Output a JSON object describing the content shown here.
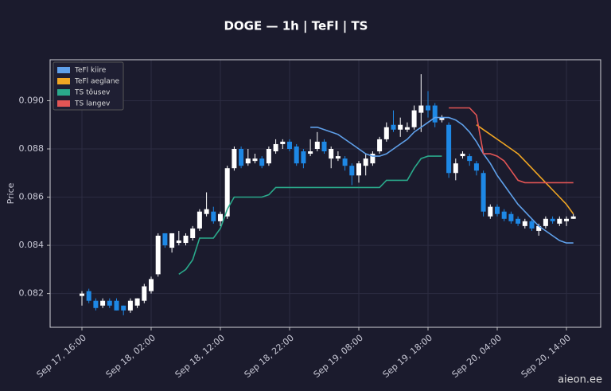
{
  "chart_data": {
    "type": "candlestick",
    "title": "DOGE — 1h  |  TeFl  |  TS",
    "ylabel": "Price",
    "watermark": "aieon.ee",
    "legend": "upper left",
    "grid": true,
    "up_color": "#ffffff",
    "down_color": "#1e88e5",
    "categories": [
      "Sep 17, 16:00",
      null,
      null,
      null,
      null,
      null,
      null,
      null,
      null,
      null,
      "Sep 18, 02:00",
      null,
      null,
      null,
      null,
      null,
      null,
      null,
      null,
      null,
      "Sep 18, 12:00",
      null,
      null,
      null,
      null,
      null,
      null,
      null,
      null,
      null,
      "Sep 18, 22:00",
      null,
      null,
      null,
      null,
      null,
      null,
      null,
      null,
      null,
      "Sep 19, 08:00",
      null,
      null,
      null,
      null,
      null,
      null,
      null,
      null,
      null,
      "Sep 19, 18:00",
      null,
      null,
      null,
      null,
      null,
      null,
      null,
      null,
      null,
      "Sep 20, 04:00",
      null,
      null,
      null,
      null,
      null,
      null,
      null,
      null,
      null,
      "Sep 20, 14:00",
      null
    ],
    "open": [
      0.0819,
      0.0821,
      0.0817,
      0.0815,
      0.0817,
      0.0817,
      0.0815,
      0.0813,
      0.0815,
      0.0817,
      0.0821,
      0.0828,
      0.0845,
      0.0839,
      0.0841,
      0.0841,
      0.0843,
      0.0847,
      0.0853,
      0.0854,
      0.085,
      0.0852,
      0.0872,
      0.088,
      0.0874,
      0.0875,
      0.0876,
      0.0874,
      0.0879,
      0.0882,
      0.0883,
      0.0881,
      0.0879,
      0.0878,
      0.088,
      0.0883,
      0.0876,
      0.0876,
      0.0876,
      0.0873,
      0.0869,
      0.0873,
      0.0874,
      0.0879,
      0.0884,
      0.089,
      0.0888,
      0.0888,
      0.0889,
      0.0895,
      0.0898,
      0.0898,
      0.0892,
      0.089,
      0.087,
      0.0877,
      0.0877,
      0.0874,
      0.087,
      0.0852,
      0.0856,
      0.0854,
      0.0853,
      0.0851,
      0.0848,
      0.085,
      0.0846,
      0.0848,
      0.0851,
      0.0849,
      0.085,
      0.0851
    ],
    "high": [
      0.0821,
      0.0822,
      0.0818,
      0.0818,
      0.0818,
      0.0818,
      0.0815,
      0.0818,
      0.0818,
      0.0824,
      0.0827,
      0.0845,
      0.0845,
      0.0845,
      0.0846,
      0.0845,
      0.0848,
      0.0855,
      0.0862,
      0.0856,
      0.0854,
      0.0873,
      0.0881,
      0.0881,
      0.088,
      0.0878,
      0.0877,
      0.0881,
      0.0884,
      0.0884,
      0.0884,
      0.0882,
      0.088,
      0.0884,
      0.0887,
      0.0884,
      0.0881,
      0.0879,
      0.0877,
      0.0874,
      0.0875,
      0.0878,
      0.0879,
      0.0885,
      0.0891,
      0.0896,
      0.0893,
      0.0891,
      0.0898,
      0.0911,
      0.0904,
      0.0899,
      0.0894,
      0.0891,
      0.0876,
      0.0879,
      0.0878,
      0.0875,
      0.0871,
      0.0857,
      0.0857,
      0.0855,
      0.0854,
      0.0852,
      0.0851,
      0.0851,
      0.0849,
      0.0852,
      0.0852,
      0.0852,
      0.0852,
      0.0853
    ],
    "low": [
      0.0815,
      0.0816,
      0.0813,
      0.0814,
      0.0814,
      0.0813,
      0.0811,
      0.0812,
      0.0814,
      0.0816,
      0.082,
      0.0827,
      0.0839,
      0.0837,
      0.084,
      0.084,
      0.0842,
      0.0846,
      0.0852,
      0.0849,
      0.0848,
      0.0851,
      0.0871,
      0.0872,
      0.0873,
      0.0874,
      0.0872,
      0.0873,
      0.0878,
      0.088,
      0.0879,
      0.0873,
      0.0872,
      0.0877,
      0.0879,
      0.0878,
      0.0872,
      0.0875,
      0.0871,
      0.0865,
      0.0866,
      0.0869,
      0.0873,
      0.0878,
      0.0883,
      0.0887,
      0.0885,
      0.0887,
      0.0888,
      0.0887,
      0.0893,
      0.0889,
      0.0891,
      0.0868,
      0.0867,
      0.0876,
      0.0873,
      0.0869,
      0.0852,
      0.0851,
      0.0852,
      0.085,
      0.0849,
      0.0848,
      0.0847,
      0.0846,
      0.0844,
      0.0847,
      0.0849,
      0.0848,
      0.0848,
      0.0851
    ],
    "close": [
      0.082,
      0.0817,
      0.0814,
      0.0817,
      0.0815,
      0.0813,
      0.0813,
      0.0817,
      0.0818,
      0.0823,
      0.0826,
      0.0844,
      0.084,
      0.0845,
      0.0842,
      0.0844,
      0.0847,
      0.0854,
      0.0855,
      0.085,
      0.0853,
      0.0872,
      0.088,
      0.0873,
      0.0876,
      0.0876,
      0.0873,
      0.088,
      0.0882,
      0.0883,
      0.088,
      0.0874,
      0.0874,
      0.0879,
      0.0883,
      0.0879,
      0.088,
      0.0877,
      0.0873,
      0.0869,
      0.0874,
      0.0876,
      0.0878,
      0.0884,
      0.0889,
      0.0888,
      0.089,
      0.0889,
      0.0896,
      0.0898,
      0.0896,
      0.0891,
      0.0893,
      0.087,
      0.0874,
      0.0878,
      0.0875,
      0.0871,
      0.0854,
      0.0856,
      0.0853,
      0.0851,
      0.085,
      0.0849,
      0.085,
      0.0847,
      0.0848,
      0.0851,
      0.085,
      0.0851,
      0.0851,
      0.0852
    ],
    "series": [
      {
        "name": "TeFl kiire",
        "color": "#5fa0ea",
        "values": [
          null,
          null,
          null,
          null,
          null,
          null,
          null,
          null,
          null,
          null,
          null,
          null,
          null,
          null,
          null,
          null,
          null,
          null,
          null,
          null,
          null,
          null,
          null,
          null,
          null,
          null,
          null,
          null,
          null,
          null,
          null,
          null,
          null,
          0.0889,
          0.0889,
          0.0888,
          0.0887,
          0.0886,
          0.0884,
          0.0882,
          0.088,
          0.0878,
          0.0877,
          0.0877,
          0.0878,
          0.088,
          0.0882,
          0.0884,
          0.0887,
          0.0889,
          0.0891,
          0.0893,
          0.0893,
          0.0893,
          0.0892,
          0.089,
          0.0887,
          0.0883,
          0.0878,
          0.0874,
          0.0869,
          0.0865,
          0.0861,
          0.0857,
          0.0854,
          0.0851,
          0.0848,
          0.0846,
          0.0844,
          0.0842,
          0.0841,
          0.0841
        ]
      },
      {
        "name": "TeFl aeglane",
        "color": "#f0a623",
        "values": [
          null,
          null,
          null,
          null,
          null,
          null,
          null,
          null,
          null,
          null,
          null,
          null,
          null,
          null,
          null,
          null,
          null,
          null,
          null,
          null,
          null,
          null,
          null,
          null,
          null,
          null,
          null,
          null,
          null,
          null,
          null,
          null,
          null,
          null,
          null,
          null,
          null,
          null,
          null,
          null,
          null,
          null,
          null,
          null,
          null,
          null,
          null,
          null,
          null,
          null,
          null,
          null,
          null,
          null,
          null,
          null,
          null,
          0.089,
          0.0888,
          0.0886,
          0.0884,
          0.0882,
          0.088,
          0.0878,
          0.0875,
          0.0872,
          0.0869,
          0.0866,
          0.0863,
          0.086,
          0.0857,
          0.0853
        ]
      },
      {
        "name": "TS tõusev",
        "color": "#2aa98b",
        "values": [
          null,
          null,
          null,
          null,
          null,
          null,
          null,
          null,
          null,
          null,
          null,
          null,
          null,
          null,
          0.0828,
          0.083,
          0.0834,
          0.0843,
          0.0843,
          0.0843,
          0.0847,
          0.0855,
          0.086,
          0.086,
          0.086,
          0.086,
          0.086,
          0.0861,
          0.0864,
          0.0864,
          0.0864,
          0.0864,
          0.0864,
          0.0864,
          0.0864,
          0.0864,
          0.0864,
          0.0864,
          0.0864,
          0.0864,
          0.0864,
          0.0864,
          0.0864,
          0.0864,
          0.0867,
          0.0867,
          0.0867,
          0.0867,
          0.0872,
          0.0876,
          0.0877,
          0.0877,
          0.0877,
          null,
          null,
          null,
          null,
          null,
          null,
          null,
          null,
          null,
          null,
          null,
          null,
          null,
          null,
          null,
          null,
          null,
          null,
          null
        ]
      },
      {
        "name": "TS langev",
        "color": "#e25555",
        "values": [
          null,
          null,
          null,
          null,
          null,
          null,
          null,
          null,
          null,
          null,
          null,
          null,
          null,
          null,
          null,
          null,
          null,
          null,
          null,
          null,
          null,
          null,
          null,
          null,
          null,
          null,
          null,
          null,
          null,
          null,
          null,
          null,
          null,
          null,
          null,
          null,
          null,
          null,
          null,
          null,
          null,
          null,
          null,
          null,
          null,
          null,
          null,
          null,
          null,
          null,
          null,
          null,
          null,
          0.0897,
          0.0897,
          0.0897,
          0.0897,
          0.0894,
          0.0878,
          0.0878,
          0.0877,
          0.0875,
          0.0871,
          0.0867,
          0.0866,
          0.0866,
          0.0866,
          0.0866,
          0.0866,
          0.0866,
          0.0866,
          0.0866
        ]
      }
    ],
    "ylim": [
      0.0806,
      0.0917
    ],
    "yticks": [
      0.082,
      0.084,
      0.086,
      0.088,
      {
        "value": 0.09,
        "label": "0.090"
      }
    ]
  }
}
